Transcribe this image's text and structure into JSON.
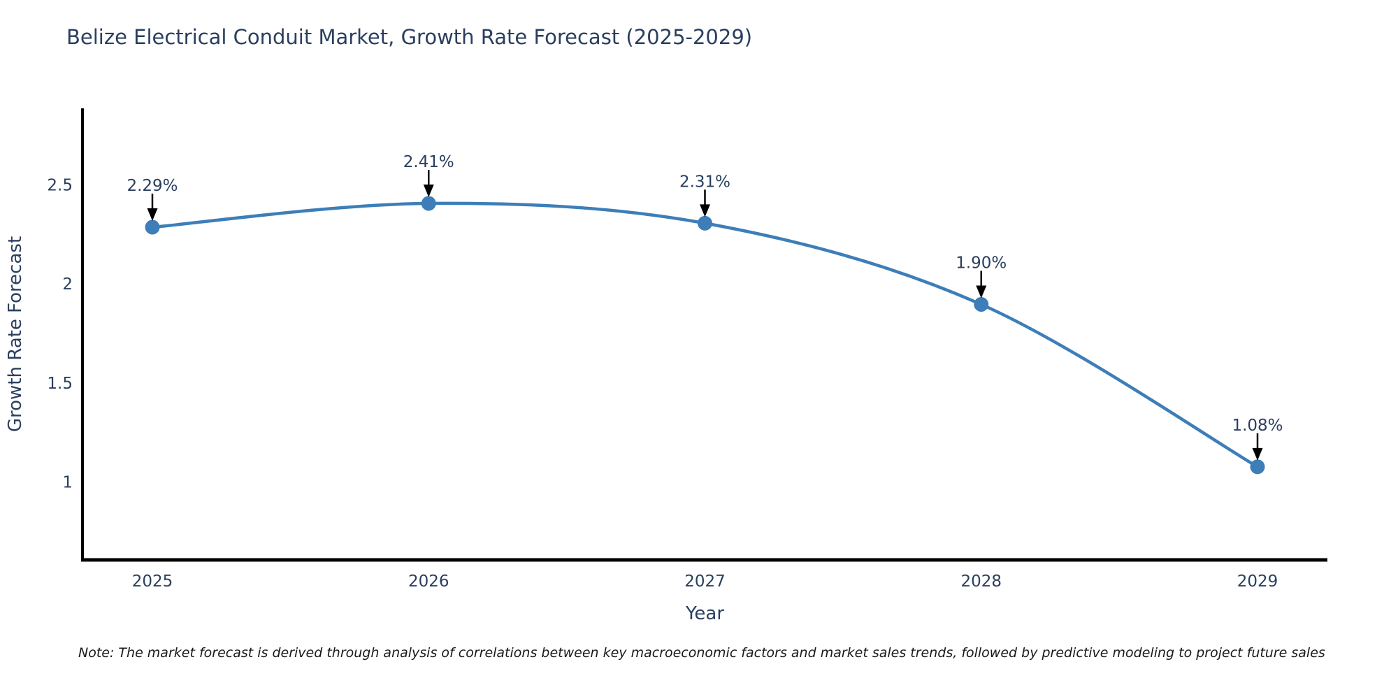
{
  "title": "Belize Electrical Conduit Market, Growth Rate Forecast (2025-2029)",
  "note": "Note: The market forecast is derived through analysis of correlations between key macroeconomic factors and market sales trends, followed by predictive modeling to project future sales",
  "chart_data": {
    "type": "line",
    "x": [
      2025,
      2026,
      2027,
      2028,
      2029
    ],
    "series": [
      {
        "name": "Growth Rate Forecast",
        "values": [
          2.29,
          2.41,
          2.31,
          1.9,
          1.08
        ]
      }
    ],
    "point_labels": [
      "2.29%",
      "2.41%",
      "2.31%",
      "1.90%",
      "1.08%"
    ],
    "xlabel": "Year",
    "ylabel": "Growth Rate Forecast",
    "yticks": [
      1,
      1.5,
      2,
      2.5
    ],
    "ytick_labels": [
      "1",
      "1.5",
      "2",
      "2.5"
    ],
    "ylim": [
      0.61,
      2.89
    ],
    "line_shape": "spline",
    "grid": false,
    "legend": "none",
    "colors": {
      "line": "#3d7eb8",
      "marker": "#3d7eb8",
      "axis_line": "#000000",
      "text": "#2a3f5f",
      "annotation_arrow": "#000000",
      "note_text": "#1a1a1a",
      "background": "#ffffff"
    }
  }
}
